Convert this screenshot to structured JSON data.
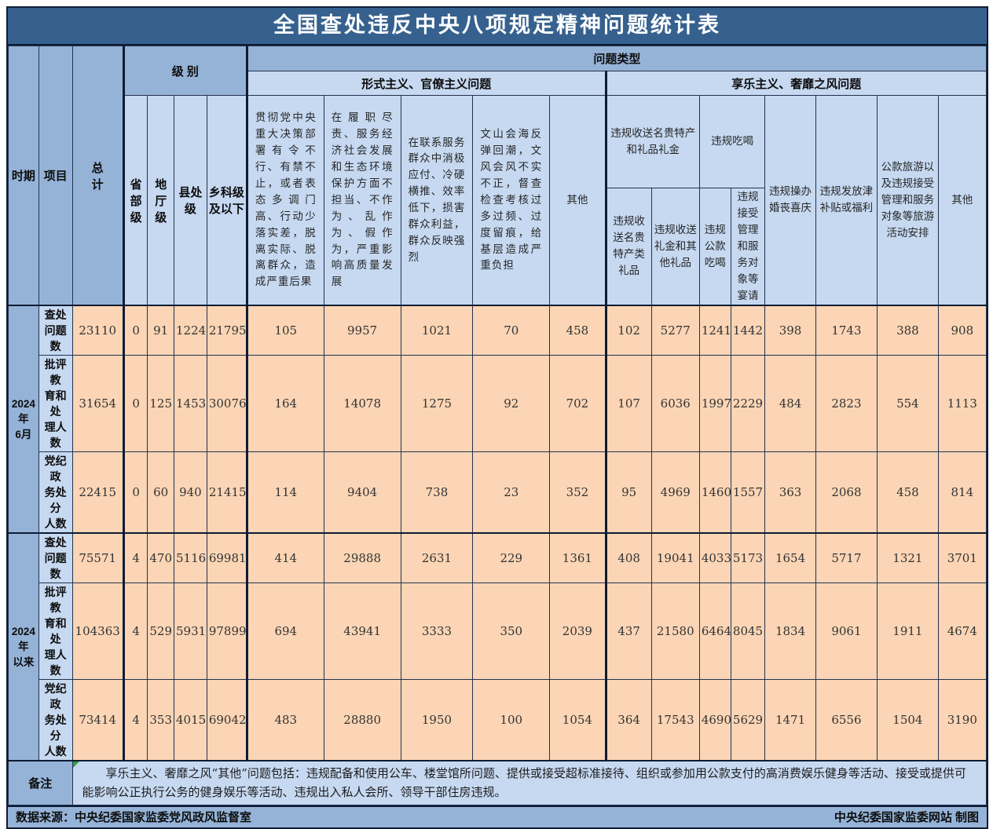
{
  "title": "全国查处违反中央八项规定精神问题统计表",
  "colors": {
    "title_bar": "#36618F",
    "header_medium": "#95B3D7",
    "header_light": "#C6D9F1",
    "data_cell": "#FBD5B5",
    "border": "#0E1C33"
  },
  "header": {
    "period": "时期",
    "item": "项目",
    "total": "总\n计",
    "level": "级 别",
    "problem_type": "问题类型",
    "formalism_group": "形式主义、官僚主义问题",
    "hedonism_group": "享乐主义、奢靡之风问题",
    "levels": [
      "省部级",
      "地厅级",
      "县处级",
      "乡科级及以下"
    ],
    "formalism_cols": [
      "贯彻党中央重大决策部署有令不行、有禁不止，或者表态多调门高、行动少落实差，脱离实际、脱离群众，造成严重后果",
      "在履职尽责、服务经济社会发展和生态环境保护方面不担当、不作为、乱作为、假作为，严重影响高质量发展",
      "在联系服务群众中消极应付、冷硬横推、效率低下，损害群众利益，群众反映强烈",
      "文山会海反弹回潮，文风会风不实不正，督查检查考核过多过频、过度留痕，给基层造成严重负担",
      "其他"
    ],
    "gifts_group": "违规收送名贵特产和礼品礼金",
    "eating_group": "违规吃喝",
    "gifts_sub": [
      "违规收送名贵特产类礼品",
      "违规收送礼金和其他礼品"
    ],
    "eating_sub": [
      "违规公款吃喝",
      "违规接受管理和服务对象等宴请"
    ],
    "hedonism_cols": [
      "违规操办婚丧喜庆",
      "违规发放津补贴或福利",
      "公款旅游以及违规接受管理和服务对象等旅游活动安排",
      "其他"
    ]
  },
  "body": {
    "periods": [
      "2024年\n6月",
      "2024年\n以来"
    ],
    "row_labels": [
      "查处\n问题数",
      "批评教\n育和处\n理人数",
      "党纪政\n务处分\n人数"
    ]
  },
  "chart_data": {
    "type": "table",
    "title": "全国查处违反中央八项规定精神问题统计表",
    "columns": [
      "总计",
      "省部级",
      "地厅级",
      "县处级",
      "乡科级及以下",
      "贯彻党中央重大决策部署有令不行、有禁不止，或者表态多调门高、行动少落实差，脱离实际、脱离群众，造成严重后果",
      "在履职尽责、服务经济社会发展和生态环境保护方面不担当、不作为、乱作为、假作为，严重影响高质量发展",
      "在联系服务群众中消极应付、冷硬横推、效率低下，损害群众利益，群众反映强烈",
      "文山会海反弹回潮，文风会风不实不正，督查检查考核过多过频、过度留痕，给基层造成严重负担",
      "形式主义、官僚主义问题-其他",
      "违规收送名贵特产类礼品",
      "违规收送礼金和其他礼品",
      "违规公款吃喝",
      "违规接受管理和服务对象等宴请",
      "违规操办婚丧喜庆",
      "违规发放津补贴或福利",
      "公款旅游以及违规接受管理和服务对象等旅游活动安排",
      "享乐主义、奢靡之风问题-其他"
    ],
    "row_groups": [
      {
        "period": "2024年6月",
        "rows": [
          {
            "label": "查处问题数",
            "values": [
              23110,
              0,
              91,
              1224,
              21795,
              105,
              9957,
              1021,
              70,
              458,
              102,
              5277,
              1241,
              1442,
              398,
              1743,
              388,
              908
            ]
          },
          {
            "label": "批评教育和处理人数",
            "values": [
              31654,
              0,
              125,
              1453,
              30076,
              164,
              14078,
              1275,
              92,
              702,
              107,
              6036,
              1997,
              2229,
              484,
              2823,
              554,
              1113
            ]
          },
          {
            "label": "党纪政务处分人数",
            "values": [
              22415,
              0,
              60,
              940,
              21415,
              114,
              9404,
              738,
              23,
              352,
              95,
              4969,
              1460,
              1557,
              363,
              2068,
              458,
              814
            ]
          }
        ]
      },
      {
        "period": "2024年以来",
        "rows": [
          {
            "label": "查处问题数",
            "values": [
              75571,
              4,
              470,
              5116,
              69981,
              414,
              29888,
              2631,
              229,
              1361,
              408,
              19041,
              4033,
              5173,
              1654,
              5717,
              1321,
              3701
            ]
          },
          {
            "label": "批评教育和处理人数",
            "values": [
              104363,
              4,
              529,
              5931,
              97899,
              694,
              43941,
              3333,
              350,
              2039,
              437,
              21580,
              6464,
              8045,
              1834,
              9061,
              1911,
              4674
            ]
          },
          {
            "label": "党纪政务处分人数",
            "values": [
              73414,
              4,
              353,
              4015,
              69042,
              483,
              28880,
              1950,
              100,
              1054,
              364,
              17543,
              4690,
              5629,
              1471,
              6556,
              1504,
              3190
            ]
          }
        ]
      }
    ]
  },
  "remark": {
    "label": "备注",
    "text": "享乐主义、奢靡之风“其他”问题包括：违规配备和使用公车、楼堂馆所问题、提供或接受超标准接待、组织或参加用公款支付的高消费娱乐健身等活动、接受或提供可能影响公正执行公务的健身娱乐等活动、违规出入私人会所、领导干部住房违规。"
  },
  "footer": {
    "left": "数据来源：中央纪委国家监委党风政风监督室",
    "right": "中央纪委国家监委网站 制图"
  }
}
